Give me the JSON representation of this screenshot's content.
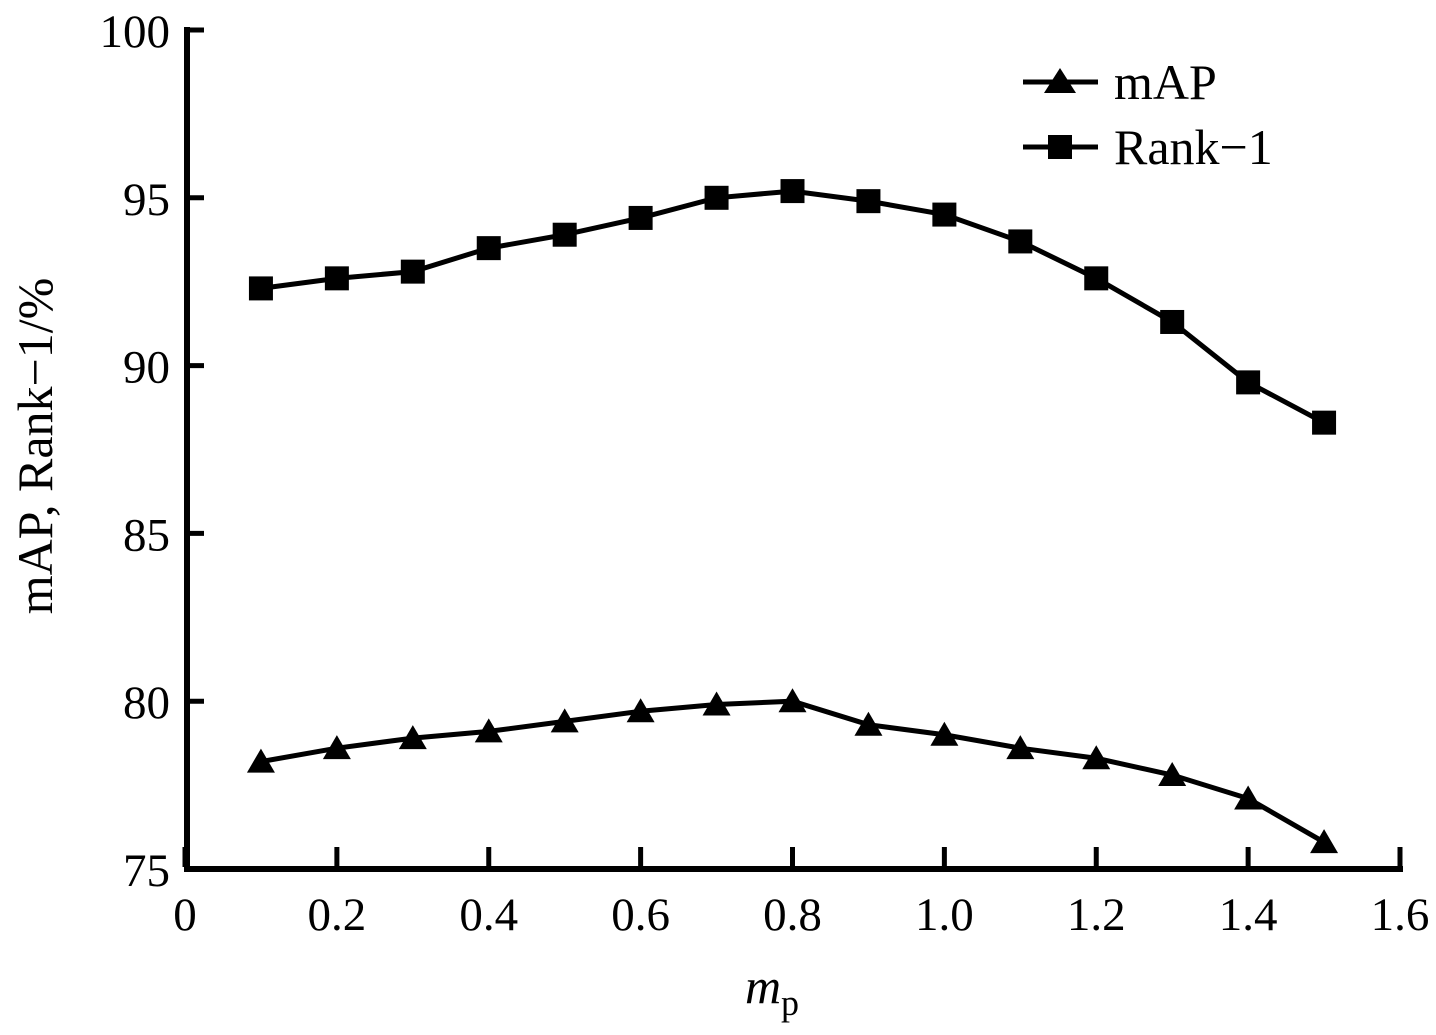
{
  "chart_data": {
    "type": "line",
    "title": "",
    "ylabel": "mAP, Rank−1/%",
    "xlabel_main": "m",
    "xlabel_sub": "p",
    "xlim": [
      0,
      1.6
    ],
    "ylim": [
      75,
      100
    ],
    "x_ticks": [
      0,
      0.2,
      0.4,
      0.6,
      0.8,
      1.0,
      1.2,
      1.4,
      1.6
    ],
    "x_tick_labels": [
      "0",
      "0.2",
      "0.4",
      "0.6",
      "0.8",
      "1.0",
      "1.2",
      "1.4",
      "1.6"
    ],
    "y_ticks": [
      75,
      80,
      85,
      90,
      95,
      100
    ],
    "x": [
      0.1,
      0.2,
      0.3,
      0.4,
      0.5,
      0.6,
      0.7,
      0.8,
      0.9,
      1.0,
      1.1,
      1.2,
      1.3,
      1.4,
      1.5
    ],
    "series": [
      {
        "name": "mAP",
        "marker": "triangle",
        "color": "#000000",
        "values": [
          78.2,
          78.6,
          78.9,
          79.1,
          79.4,
          79.7,
          79.9,
          80.0,
          79.3,
          79.0,
          78.6,
          78.3,
          77.8,
          77.1,
          75.8
        ]
      },
      {
        "name": "Rank−1",
        "marker": "square",
        "color": "#000000",
        "values": [
          92.3,
          92.6,
          92.8,
          93.5,
          93.9,
          94.4,
          95.0,
          95.2,
          94.9,
          94.5,
          93.7,
          92.6,
          91.3,
          89.5,
          88.3
        ]
      }
    ],
    "grid": false,
    "legend_position": "top-right",
    "axis_color": "#000000",
    "background": "#ffffff"
  }
}
